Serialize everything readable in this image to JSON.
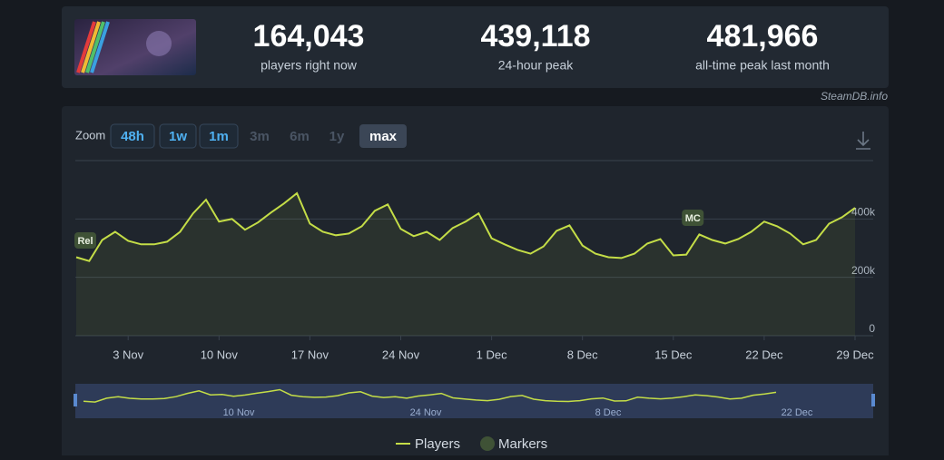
{
  "header": {
    "stats": [
      {
        "value": "164,043",
        "label": "players right now"
      },
      {
        "value": "439,118",
        "label": "24-hour peak"
      },
      {
        "value": "481,966",
        "label": "all-time peak last month"
      }
    ],
    "source": "SteamDB.info"
  },
  "zoom": {
    "label": "Zoom",
    "buttons": [
      "48h",
      "1w",
      "1m",
      "3m",
      "6m",
      "1y",
      "max"
    ]
  },
  "chart_data": {
    "type": "line",
    "categories": [
      null,
      null,
      null,
      null,
      "3 Nov",
      null,
      null,
      null,
      null,
      null,
      null,
      "10 Nov",
      null,
      null,
      null,
      null,
      null,
      null,
      "17 Nov",
      null,
      null,
      null,
      null,
      null,
      null,
      "24 Nov",
      null,
      null,
      null,
      null,
      null,
      null,
      "1 Dec",
      null,
      null,
      null,
      null,
      null,
      null,
      "8 Dec",
      null,
      null,
      null,
      null,
      null,
      null,
      "15 Dec",
      null,
      null,
      null,
      null,
      null,
      null,
      "22 Dec",
      null,
      null,
      null,
      null,
      null,
      null,
      "29 Dec"
    ],
    "series": [
      {
        "name": "Players",
        "color": "#c4dd47",
        "values": [
          269000,
          256000,
          328000,
          356000,
          325000,
          313000,
          313000,
          322000,
          356000,
          419000,
          466000,
          391000,
          400000,
          363000,
          388000,
          422000,
          453000,
          488000,
          384000,
          356000,
          344000,
          350000,
          375000,
          428000,
          450000,
          366000,
          341000,
          356000,
          328000,
          369000,
          391000,
          419000,
          334000,
          313000,
          294000,
          281000,
          306000,
          359000,
          378000,
          309000,
          281000,
          269000,
          266000,
          281000,
          316000,
          331000,
          275000,
          278000,
          347000,
          328000,
          316000,
          331000,
          356000,
          391000,
          375000,
          350000,
          313000,
          328000,
          384000,
          406000,
          438000
        ]
      }
    ],
    "markers": {
      "name": "Markers",
      "color": "#3f5236",
      "labels": [
        "Rel",
        "MC"
      ]
    },
    "ylim": [
      0,
      600000
    ],
    "yticks": [
      0,
      {
        "value": 200000,
        "label": "200k"
      },
      {
        "value": 400000,
        "label": "400k"
      }
    ],
    "grid": true,
    "navigator_labels": [
      "10 Nov",
      "24 Nov",
      "8 Dec",
      "22 Dec"
    ]
  }
}
